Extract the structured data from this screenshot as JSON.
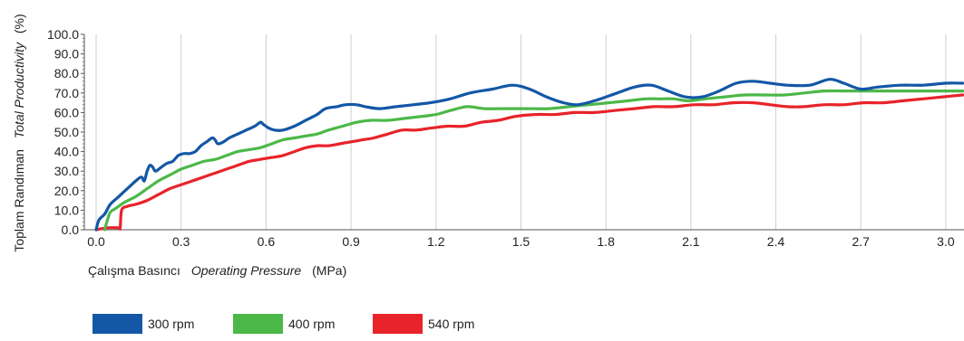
{
  "chart_data": {
    "type": "line",
    "ylabel": {
      "turkish": "Toplam Randıman",
      "english": "Total Productivity",
      "unit": "(%)"
    },
    "xlabel": {
      "turkish": "Çalışma Basıncı",
      "english": "Operating Pressure",
      "unit": "(MPa)"
    },
    "xlim": [
      0.0,
      3.0
    ],
    "ylim": [
      0.0,
      100.0
    ],
    "x_ticks": [
      "0.0",
      "0.3",
      "0.6",
      "0.9",
      "1.2",
      "1.5",
      "1.8",
      "2.1",
      "2.4",
      "2.7",
      "3.0"
    ],
    "y_ticks": [
      "0.0",
      "10.0",
      "20.0",
      "30.0",
      "40.0",
      "50.0",
      "60.0",
      "70.0",
      "80.0",
      "90.0",
      "100.0"
    ],
    "grid": {
      "vertical": true,
      "horizontal": false
    },
    "legend_position": "bottom-left",
    "series": [
      {
        "name": "300 rpm",
        "color": "#1357a6",
        "points": [
          [
            0.0,
            0
          ],
          [
            0.01,
            5
          ],
          [
            0.03,
            8
          ],
          [
            0.05,
            13
          ],
          [
            0.08,
            17
          ],
          [
            0.11,
            21
          ],
          [
            0.14,
            25
          ],
          [
            0.16,
            27
          ],
          [
            0.17,
            25
          ],
          [
            0.18,
            30
          ],
          [
            0.19,
            33
          ],
          [
            0.2,
            32
          ],
          [
            0.21,
            30
          ],
          [
            0.23,
            32
          ],
          [
            0.25,
            34
          ],
          [
            0.27,
            35
          ],
          [
            0.29,
            38
          ],
          [
            0.31,
            39
          ],
          [
            0.33,
            39
          ],
          [
            0.35,
            40
          ],
          [
            0.37,
            43
          ],
          [
            0.39,
            45
          ],
          [
            0.41,
            47
          ],
          [
            0.42,
            46
          ],
          [
            0.43,
            44
          ],
          [
            0.45,
            45
          ],
          [
            0.47,
            47
          ],
          [
            0.5,
            49
          ],
          [
            0.53,
            51
          ],
          [
            0.56,
            53
          ],
          [
            0.58,
            55
          ],
          [
            0.59,
            54
          ],
          [
            0.61,
            52
          ],
          [
            0.63,
            51
          ],
          [
            0.66,
            51
          ],
          [
            0.7,
            53
          ],
          [
            0.74,
            56
          ],
          [
            0.78,
            59
          ],
          [
            0.81,
            62
          ],
          [
            0.85,
            63
          ],
          [
            0.88,
            64
          ],
          [
            0.92,
            64
          ],
          [
            0.95,
            63
          ],
          [
            1.0,
            62
          ],
          [
            1.06,
            63
          ],
          [
            1.12,
            64
          ],
          [
            1.18,
            65
          ],
          [
            1.25,
            67
          ],
          [
            1.32,
            70
          ],
          [
            1.4,
            72
          ],
          [
            1.47,
            74
          ],
          [
            1.53,
            72
          ],
          [
            1.59,
            68
          ],
          [
            1.65,
            65
          ],
          [
            1.7,
            64
          ],
          [
            1.76,
            66
          ],
          [
            1.84,
            70
          ],
          [
            1.9,
            73
          ],
          [
            1.96,
            74
          ],
          [
            2.02,
            71
          ],
          [
            2.08,
            68
          ],
          [
            2.14,
            68
          ],
          [
            2.2,
            71
          ],
          [
            2.26,
            75
          ],
          [
            2.32,
            76
          ],
          [
            2.38,
            75
          ],
          [
            2.44,
            74
          ],
          [
            2.52,
            74
          ],
          [
            2.59,
            77
          ],
          [
            2.64,
            75
          ],
          [
            2.7,
            72
          ],
          [
            2.76,
            73
          ],
          [
            2.84,
            74
          ],
          [
            2.92,
            74
          ],
          [
            3.0,
            75
          ],
          [
            3.06,
            75
          ]
        ]
      },
      {
        "name": "400 rpm",
        "color": "#4cb848",
        "points": [
          [
            0.03,
            0
          ],
          [
            0.04,
            5
          ],
          [
            0.05,
            9
          ],
          [
            0.07,
            11
          ],
          [
            0.1,
            14
          ],
          [
            0.14,
            17
          ],
          [
            0.18,
            21
          ],
          [
            0.22,
            25
          ],
          [
            0.26,
            28
          ],
          [
            0.3,
            31
          ],
          [
            0.34,
            33
          ],
          [
            0.38,
            35
          ],
          [
            0.42,
            36
          ],
          [
            0.46,
            38
          ],
          [
            0.5,
            40
          ],
          [
            0.54,
            41
          ],
          [
            0.58,
            42
          ],
          [
            0.62,
            44
          ],
          [
            0.66,
            46
          ],
          [
            0.7,
            47
          ],
          [
            0.74,
            48
          ],
          [
            0.78,
            49
          ],
          [
            0.82,
            51
          ],
          [
            0.87,
            53
          ],
          [
            0.92,
            55
          ],
          [
            0.97,
            56
          ],
          [
            1.03,
            56
          ],
          [
            1.09,
            57
          ],
          [
            1.15,
            58
          ],
          [
            1.2,
            59
          ],
          [
            1.25,
            61
          ],
          [
            1.31,
            63
          ],
          [
            1.37,
            62
          ],
          [
            1.44,
            62
          ],
          [
            1.52,
            62
          ],
          [
            1.6,
            62
          ],
          [
            1.67,
            63
          ],
          [
            1.74,
            64
          ],
          [
            1.81,
            65
          ],
          [
            1.88,
            66
          ],
          [
            1.94,
            67
          ],
          [
            1.99,
            67
          ],
          [
            2.04,
            67
          ],
          [
            2.09,
            66
          ],
          [
            2.15,
            67
          ],
          [
            2.22,
            68
          ],
          [
            2.29,
            69
          ],
          [
            2.36,
            69
          ],
          [
            2.43,
            69
          ],
          [
            2.5,
            70
          ],
          [
            2.57,
            71
          ],
          [
            2.64,
            71
          ],
          [
            2.71,
            71
          ],
          [
            2.78,
            71
          ],
          [
            2.86,
            71
          ],
          [
            2.94,
            71
          ],
          [
            3.0,
            71
          ],
          [
            3.06,
            71
          ]
        ]
      },
      {
        "name": "540 rpm",
        "color": "#e8232a",
        "points": [
          [
            0.0,
            0
          ],
          [
            0.04,
            1
          ],
          [
            0.08,
            1
          ],
          [
            0.085,
            1
          ],
          [
            0.09,
            10
          ],
          [
            0.11,
            12
          ],
          [
            0.14,
            13
          ],
          [
            0.18,
            15
          ],
          [
            0.22,
            18
          ],
          [
            0.26,
            21
          ],
          [
            0.3,
            23
          ],
          [
            0.34,
            25
          ],
          [
            0.38,
            27
          ],
          [
            0.42,
            29
          ],
          [
            0.46,
            31
          ],
          [
            0.5,
            33
          ],
          [
            0.54,
            35
          ],
          [
            0.58,
            36
          ],
          [
            0.62,
            37
          ],
          [
            0.66,
            38
          ],
          [
            0.7,
            40
          ],
          [
            0.74,
            42
          ],
          [
            0.78,
            43
          ],
          [
            0.82,
            43
          ],
          [
            0.86,
            44
          ],
          [
            0.9,
            45
          ],
          [
            0.94,
            46
          ],
          [
            0.98,
            47
          ],
          [
            1.03,
            49
          ],
          [
            1.08,
            51
          ],
          [
            1.13,
            51
          ],
          [
            1.18,
            52
          ],
          [
            1.24,
            53
          ],
          [
            1.3,
            53
          ],
          [
            1.36,
            55
          ],
          [
            1.42,
            56
          ],
          [
            1.48,
            58
          ],
          [
            1.55,
            59
          ],
          [
            1.62,
            59
          ],
          [
            1.69,
            60
          ],
          [
            1.76,
            60
          ],
          [
            1.83,
            61
          ],
          [
            1.9,
            62
          ],
          [
            1.97,
            63
          ],
          [
            2.04,
            63
          ],
          [
            2.11,
            64
          ],
          [
            2.18,
            64
          ],
          [
            2.25,
            65
          ],
          [
            2.32,
            65
          ],
          [
            2.38,
            64
          ],
          [
            2.44,
            63
          ],
          [
            2.5,
            63
          ],
          [
            2.57,
            64
          ],
          [
            2.64,
            64
          ],
          [
            2.71,
            65
          ],
          [
            2.78,
            65
          ],
          [
            2.85,
            66
          ],
          [
            2.92,
            67
          ],
          [
            2.99,
            68
          ],
          [
            3.06,
            69
          ]
        ]
      }
    ]
  }
}
